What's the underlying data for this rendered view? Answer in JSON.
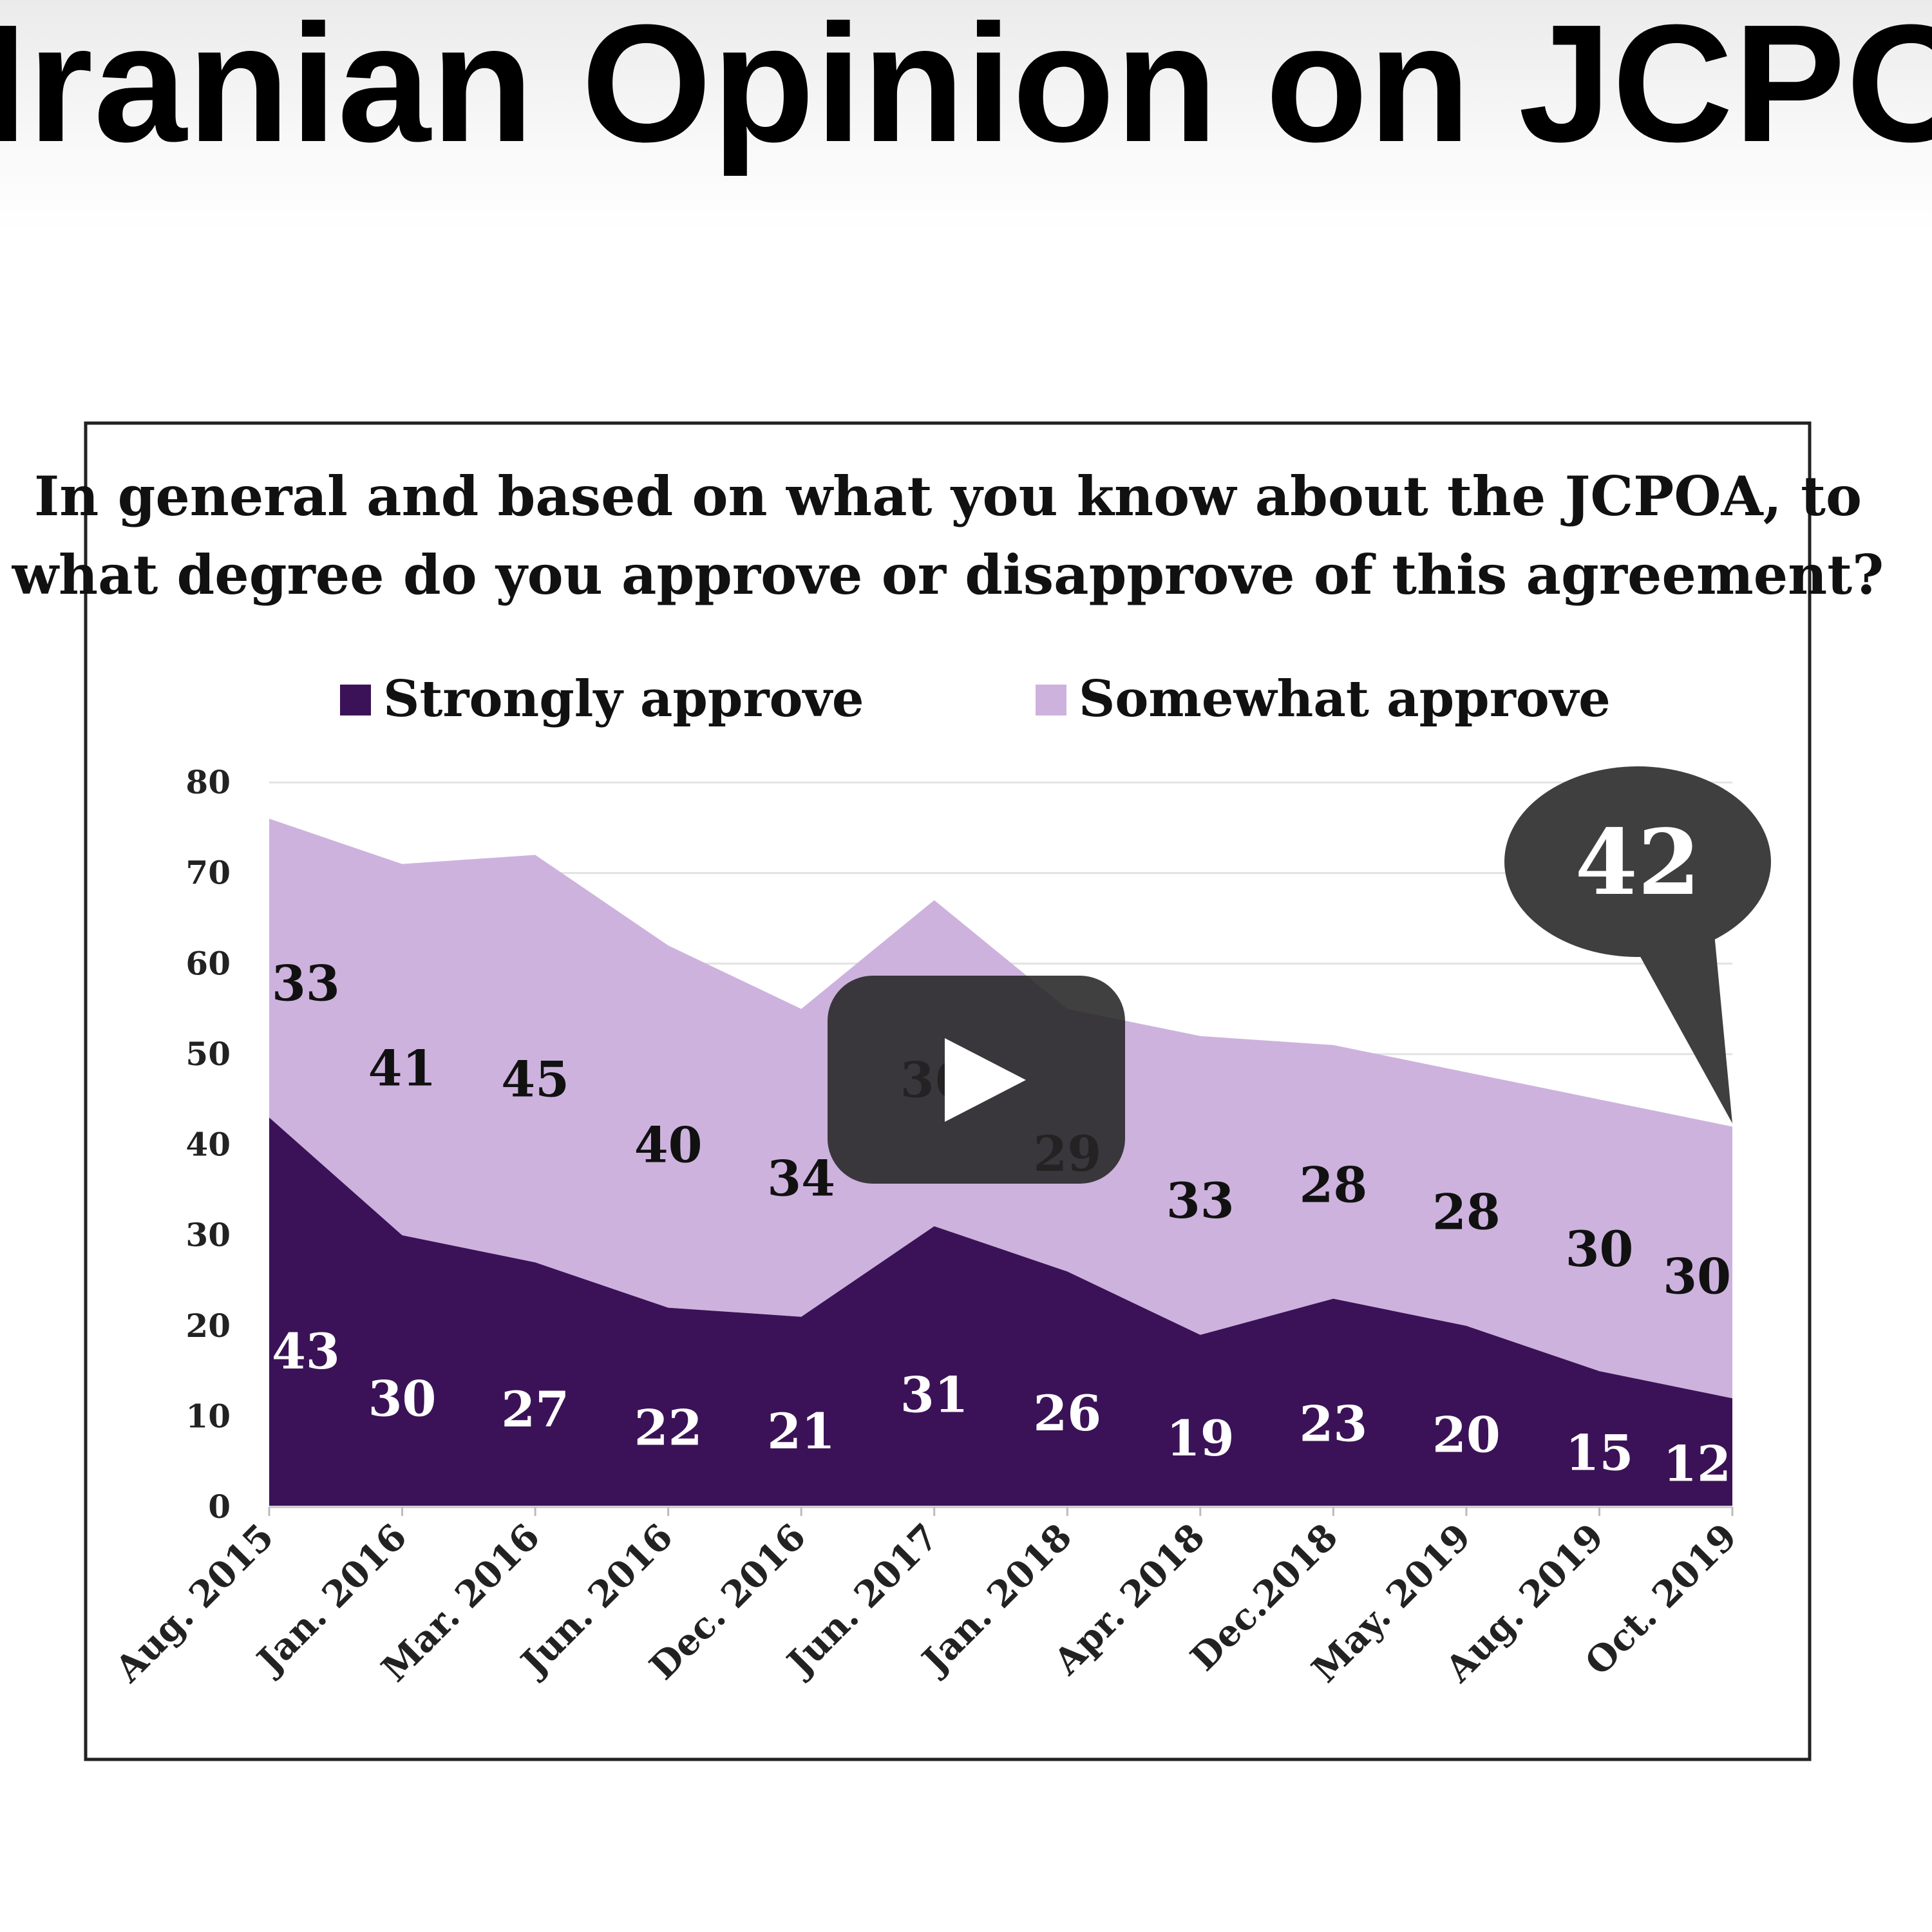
{
  "slide": {
    "title": "Iranian Opinion on JCPOA"
  },
  "chart_data": {
    "type": "area",
    "stacked": true,
    "title": "In general and based on what you know about the JCPOA, to what degree do you approve or disapprove of this agreement?",
    "title_lines": [
      "In general and based on what you know about the JCPOA, to",
      "what degree do you approve or disapprove of this agreement?"
    ],
    "categories": [
      "Aug. 2015",
      "Jan. 2016",
      "Mar. 2016",
      "Jun. 2016",
      "Dec. 2016",
      "Jun. 2017",
      "Jan. 2018",
      "Apr. 2018",
      "Dec.2018",
      "May. 2019",
      "Aug. 2019",
      "Oct. 2019"
    ],
    "series": [
      {
        "name": "Strongly approve",
        "color": "#3b1257",
        "values": [
          43,
          30,
          27,
          22,
          21,
          31,
          26,
          19,
          23,
          20,
          15,
          12
        ]
      },
      {
        "name": "Somewhat approve",
        "color": "#cdb2de",
        "values": [
          33,
          41,
          45,
          40,
          34,
          36,
          29,
          33,
          28,
          28,
          30,
          30
        ]
      }
    ],
    "ylim": [
      0,
      80
    ],
    "yticks": [
      0,
      10,
      20,
      30,
      40,
      50,
      60,
      70,
      80
    ],
    "grid": true,
    "legend": "top",
    "callout": {
      "text": "42",
      "points_to": "Oct. 2019"
    }
  },
  "video_overlay": {
    "icon": "play-icon"
  }
}
